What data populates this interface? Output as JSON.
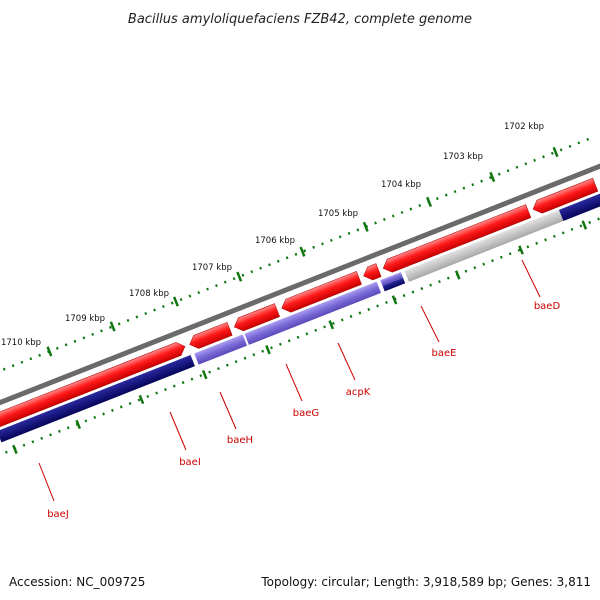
{
  "title": "Bacillus amyloliquefaciens FZB42, complete genome",
  "footer": {
    "accession": "Accession: NC_009725",
    "summary": "Topology: circular; Length: 3,918,589 bp; Genes: 3,811"
  },
  "scale_labels": [
    "1702 kbp",
    "1703 kbp",
    "1704 kbp",
    "1705 kbp",
    "1706 kbp",
    "1707 kbp",
    "1708 kbp",
    "1709 kbp",
    "1710 kbp"
  ],
  "gene_labels": [
    "baeD",
    "baeE",
    "acpK",
    "baeG",
    "baeH",
    "baeI",
    "baeJ"
  ],
  "colors": {
    "forward_cds": "#ff1a1a",
    "reverse_cds": "#7a6ad8",
    "gc_high": "#0c0c7a",
    "gc_low": "#c4c4c4",
    "backbone": "#777777",
    "ticks": "#117711",
    "label": "#cc0000"
  }
}
